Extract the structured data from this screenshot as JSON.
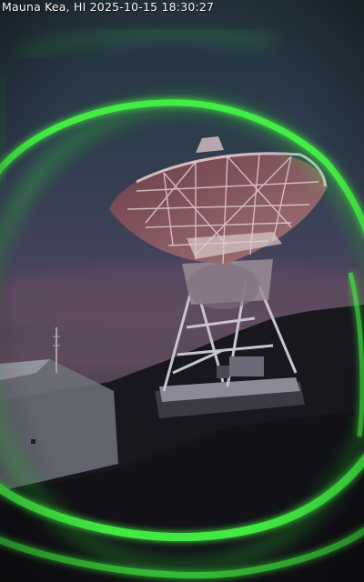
{
  "overlay": {
    "timestamp": "Mauna Kea, HI 2025-10-15 18:30:27"
  },
  "scene": {
    "subject": "radio-telescope-dish",
    "colors": {
      "sky_top": "#2b3a47",
      "sky_mid": "#46445f",
      "sky_horizon": "#6b4e5e",
      "ring_glow": "#3cff3c",
      "hill": "#1a1a22",
      "dish_face": "#7a5560",
      "building": "#8a8d95"
    }
  }
}
